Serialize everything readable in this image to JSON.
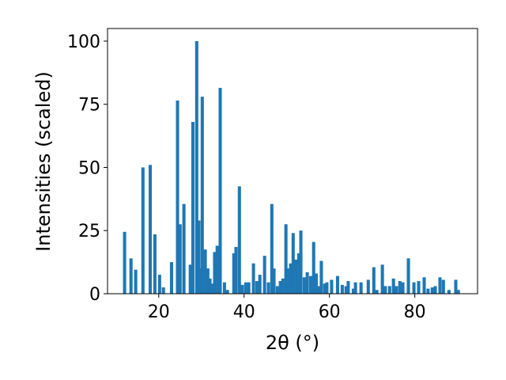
{
  "chart_data": {
    "type": "bar",
    "xlabel": "2θ (°)",
    "ylabel": "Intensities (scaled)",
    "color": "#1f77b4",
    "x": [
      12.0,
      13.5,
      14.6,
      16.3,
      18.0,
      19.1,
      20.2,
      21.1,
      23.0,
      24.4,
      25.0,
      25.9,
      27.4,
      28.0,
      28.9,
      29.4,
      29.8,
      30.2,
      30.9,
      31.5,
      32.0,
      32.6,
      33.1,
      33.7,
      34.4,
      35.4,
      36.1,
      37.6,
      38.1,
      38.9,
      39.6,
      40.4,
      41.1,
      42.2,
      43.0,
      43.7,
      44.8,
      45.7,
      46.5,
      47.0,
      47.8,
      48.5,
      49.1,
      49.8,
      50.4,
      50.9,
      51.5,
      52.2,
      52.8,
      53.3,
      54.1,
      54.8,
      55.6,
      56.3,
      56.9,
      57.6,
      58.1,
      58.9,
      59.4,
      60.5,
      61.9,
      63.0,
      63.9,
      64.4,
      65.6,
      66.1,
      67.4,
      69.1,
      70.4,
      71.1,
      72.4,
      73.1,
      74.1,
      75.0,
      75.7,
      76.5,
      77.2,
      78.5,
      79.8,
      80.9,
      82.2,
      83.1,
      84.1,
      84.8,
      85.9,
      86.7,
      88.0,
      89.6,
      90.2
    ],
    "values": [
      24.5,
      14,
      9.5,
      50,
      51,
      23.5,
      7.5,
      2.5,
      12.5,
      76.5,
      27.5,
      35.5,
      11.5,
      68,
      100,
      29,
      10,
      78,
      17.5,
      10,
      6,
      4,
      16.5,
      19,
      81.5,
      4.5,
      1.5,
      16,
      18.5,
      42.5,
      3.5,
      4.5,
      4.5,
      12,
      5,
      7.5,
      15,
      4.5,
      35.5,
      10,
      3,
      5,
      6,
      27.5,
      10,
      12,
      24,
      13.5,
      16,
      25,
      6.5,
      8.5,
      7,
      20.5,
      8,
      3,
      13,
      4,
      4.5,
      5.5,
      7,
      3.5,
      3,
      5,
      2,
      4.5,
      4.5,
      5.5,
      10.5,
      1.5,
      11.5,
      3,
      3,
      6,
      3,
      5,
      4.5,
      14,
      4.5,
      5,
      6.5,
      2,
      2.5,
      3,
      6.5,
      5.5,
      1.5,
      5.5,
      1.5
    ],
    "xlim": [
      8,
      94.7
    ],
    "ylim": [
      0,
      105
    ],
    "xticks": [
      20,
      40,
      60,
      80
    ],
    "yticks": [
      0,
      25,
      50,
      75,
      100
    ]
  }
}
